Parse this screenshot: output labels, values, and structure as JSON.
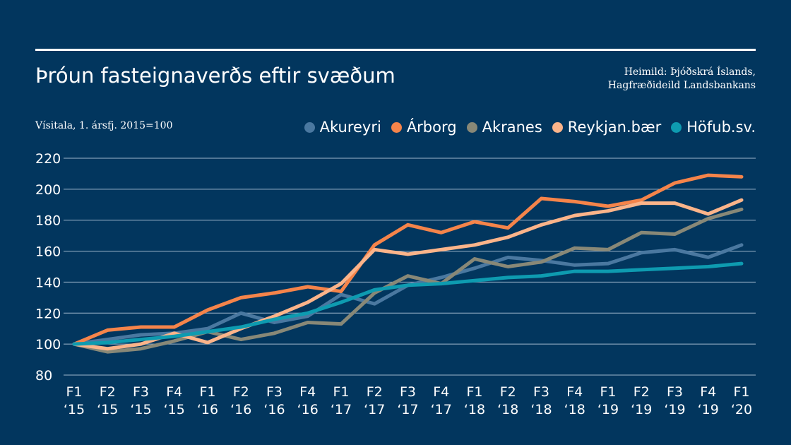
{
  "header": {
    "title": "Þróun fasteignaverðs eftir svæðum",
    "source_line1": "Heimild: Þjóðskrá Íslands,",
    "source_line2": "Hagfræðideild Landsbankans"
  },
  "chart_data": {
    "type": "line",
    "title": "Þróun fasteignaverðs eftir svæðum",
    "ylabel": "Vísitala, 1. ársfj. 2015=100",
    "xlabel": "",
    "ylim": [
      80,
      220
    ],
    "yticks": [
      80,
      100,
      120,
      140,
      160,
      180,
      200,
      220
    ],
    "grid": true,
    "legend_position": "top-right",
    "categories": [
      [
        "F1",
        "‘15"
      ],
      [
        "F2",
        "‘15"
      ],
      [
        "F3",
        "‘15"
      ],
      [
        "F4",
        "‘15"
      ],
      [
        "F1",
        "‘16"
      ],
      [
        "F2",
        "‘16"
      ],
      [
        "F3",
        "‘16"
      ],
      [
        "F4",
        "‘16"
      ],
      [
        "F1",
        "‘17"
      ],
      [
        "F2",
        "‘17"
      ],
      [
        "F3",
        "‘17"
      ],
      [
        "F4",
        "‘17"
      ],
      [
        "F1",
        "‘18"
      ],
      [
        "F2",
        "‘18"
      ],
      [
        "F3",
        "‘18"
      ],
      [
        "F4",
        "‘18"
      ],
      [
        "F1",
        "‘19"
      ],
      [
        "F2",
        "‘19"
      ],
      [
        "F3",
        "‘19"
      ],
      [
        "F4",
        "‘19"
      ],
      [
        "F1",
        "‘20"
      ]
    ],
    "series": [
      {
        "name": "Akureyri",
        "color": "#4a78a0",
        "values": [
          100,
          103,
          106,
          107,
          110,
          120,
          114,
          118,
          132,
          126,
          138,
          143,
          149,
          156,
          154,
          151,
          152,
          159,
          161,
          156,
          164
        ]
      },
      {
        "name": "Árborg",
        "color": "#f5844a",
        "values": [
          100,
          109,
          111,
          111,
          122,
          130,
          133,
          137,
          134,
          164,
          177,
          172,
          179,
          175,
          194,
          192,
          189,
          193,
          204,
          209,
          208
        ]
      },
      {
        "name": "Akranes",
        "color": "#888877",
        "values": [
          100,
          95,
          97,
          102,
          108,
          103,
          107,
          114,
          113,
          133,
          144,
          139,
          155,
          150,
          153,
          162,
          161,
          172,
          171,
          181,
          187
        ]
      },
      {
        "name": "Reykjan.bær",
        "color": "#fbb48a",
        "values": [
          100,
          97,
          100,
          107,
          101,
          110,
          118,
          127,
          139,
          161,
          158,
          161,
          164,
          169,
          177,
          183,
          186,
          191,
          191,
          184,
          193
        ]
      },
      {
        "name": "Höfub.sv.",
        "color": "#0e9bb0",
        "values": [
          100,
          101,
          103,
          105,
          108,
          111,
          116,
          120,
          127,
          135,
          138,
          139,
          141,
          143,
          144,
          147,
          147,
          148,
          149,
          150,
          152
        ]
      }
    ]
  }
}
